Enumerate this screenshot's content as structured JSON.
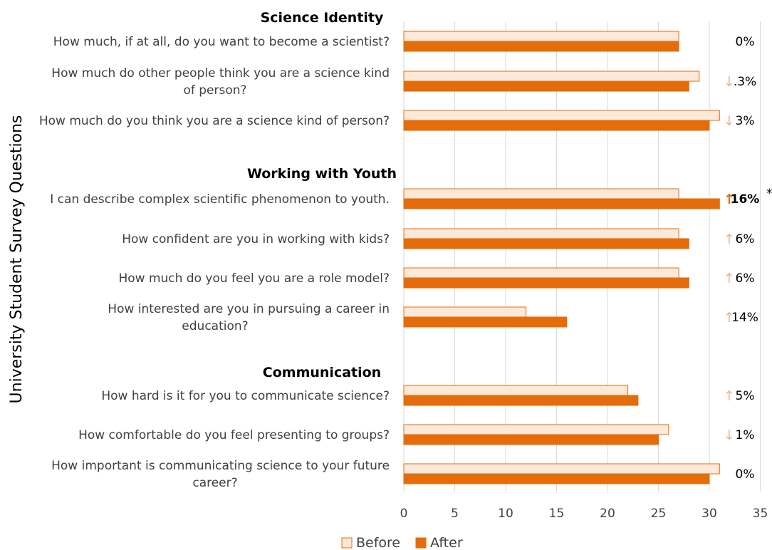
{
  "chart_data": {
    "type": "bar",
    "orientation": "horizontal",
    "ylabel": "University Student Survey Questions",
    "xlabel": "",
    "xlim": [
      0,
      35
    ],
    "xticks": [
      0,
      5,
      10,
      15,
      20,
      25,
      30,
      35
    ],
    "grid": "vertical",
    "legend_position": "bottom",
    "series": [
      {
        "name": "Before",
        "color": "#FCE9DA",
        "edge": "#E46C0A"
      },
      {
        "name": "After",
        "color": "#E46C0A",
        "edge": "#E46C0A"
      }
    ],
    "sections": [
      {
        "title": "Science Identity",
        "questions": [
          {
            "label": [
              "How much, if at all, do you want to become a scientist?"
            ],
            "before": 27,
            "after": 27,
            "change": "0%",
            "arrow": "none"
          },
          {
            "label": [
              "How much do other people think you are a science kind",
              "of person?"
            ],
            "before": 29,
            "after": 28,
            "change": ".3%",
            "arrow": "down"
          },
          {
            "label": [
              "How much do you think you are a science kind of person?"
            ],
            "before": 31,
            "after": 30,
            "change": "3%",
            "arrow": "down"
          }
        ]
      },
      {
        "title": "Working with Youth",
        "questions": [
          {
            "label": [
              "I can describe complex scientific phenomenon to youth."
            ],
            "before": 27,
            "after": 31,
            "change": "16%",
            "marker": "*",
            "arrow": "up-strong"
          },
          {
            "label": [
              "How confident are you in working with kids?"
            ],
            "before": 27,
            "after": 28,
            "change": "6%",
            "arrow": "up"
          },
          {
            "label": [
              "How much do you feel you are a role model?"
            ],
            "before": 27,
            "after": 28,
            "change": "6%",
            "arrow": "up"
          },
          {
            "label": [
              "How interested are you in pursuing a career in",
              "education?"
            ],
            "before": 12,
            "after": 16,
            "change": "14%",
            "arrow": "up"
          }
        ]
      },
      {
        "title": "Communication",
        "questions": [
          {
            "label": [
              "How hard is it for you to communicate science?"
            ],
            "before": 22,
            "after": 23,
            "change": "5%",
            "arrow": "up"
          },
          {
            "label": [
              "How comfortable do you feel presenting to groups?"
            ],
            "before": 26,
            "after": 25,
            "change": "1%",
            "arrow": "down"
          },
          {
            "label": [
              "How important is communicating science to your future",
              "career?"
            ],
            "before": 31,
            "after": 30,
            "change": "0%",
            "arrow": "none"
          }
        ]
      }
    ]
  }
}
